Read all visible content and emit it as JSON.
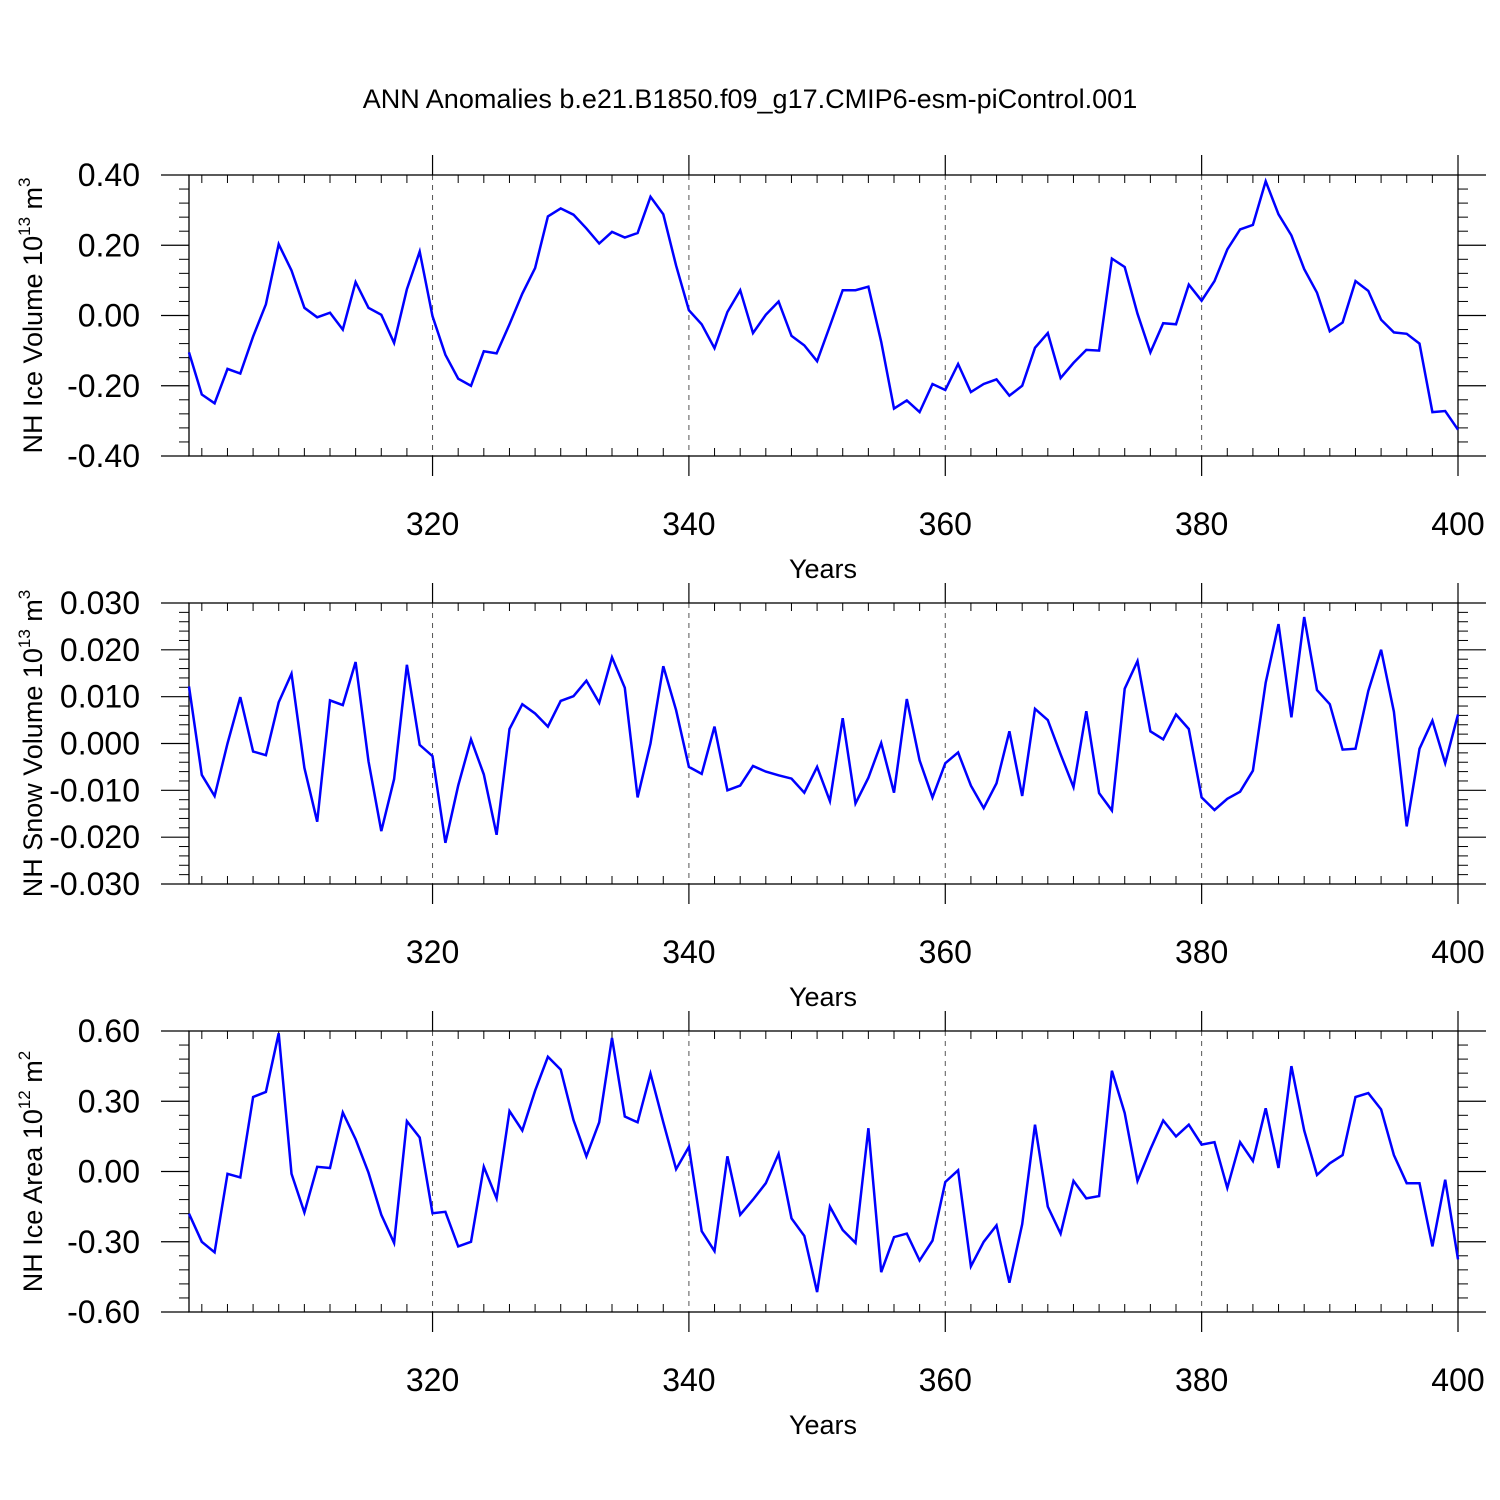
{
  "title": "ANN Anomalies b.e21.B1850.f09_g17.CMIP6-esm-piControl.001",
  "colors": {
    "series": "#0000ff",
    "axis": "#000000"
  },
  "chart_data": [
    {
      "type": "line",
      "ylabel": "NH Ice Volume",
      "yunit_base": "10",
      "yunit_exp": "13",
      "yunit_unit": "m",
      "yunit_unit_exp": "3",
      "xlabel": "Years",
      "xlim": [
        301,
        400
      ],
      "ylim": [
        -0.4,
        0.4
      ],
      "xticks": [
        320,
        340,
        360,
        380,
        400
      ],
      "xtick_labels": [
        "320",
        "340",
        "360",
        "380",
        "400"
      ],
      "yticks": [
        -0.4,
        -0.2,
        0.0,
        0.2,
        0.4
      ],
      "ytick_labels": [
        "-0.40",
        "-0.20",
        "0.00",
        "0.20",
        "0.40"
      ],
      "x_start": 301,
      "values": [
        -0.105,
        -0.225,
        -0.25,
        -0.152,
        -0.165,
        -0.06,
        0.032,
        0.203,
        0.128,
        0.022,
        -0.005,
        0.008,
        -0.04,
        0.095,
        0.022,
        0.002,
        -0.078,
        0.075,
        0.182,
        -0.002,
        -0.112,
        -0.18,
        -0.2,
        -0.102,
        -0.108,
        -0.025,
        0.062,
        0.135,
        0.282,
        0.305,
        0.287,
        0.248,
        0.205,
        0.238,
        0.222,
        0.235,
        0.338,
        0.288,
        0.142,
        0.015,
        -0.025,
        -0.093,
        0.01,
        0.072,
        -0.05,
        0.002,
        0.04,
        -0.058,
        -0.085,
        -0.13,
        -0.03,
        0.072,
        0.072,
        0.082,
        -0.075,
        -0.265,
        -0.242,
        -0.275,
        -0.195,
        -0.212,
        -0.138,
        -0.218,
        -0.195,
        -0.182,
        -0.228,
        -0.2,
        -0.092,
        -0.05,
        -0.178,
        -0.135,
        -0.098,
        -0.1,
        0.162,
        0.138,
        0.005,
        -0.105,
        -0.022,
        -0.025,
        0.088,
        0.042,
        0.098,
        0.188,
        0.245,
        0.258,
        0.382,
        0.288,
        0.228,
        0.132,
        0.065,
        -0.045,
        -0.02,
        0.098,
        0.07,
        -0.012,
        -0.048,
        -0.052,
        -0.08,
        -0.275,
        -0.272,
        -0.325
      ]
    },
    {
      "type": "line",
      "ylabel": "NH Snow Volume",
      "yunit_base": "10",
      "yunit_exp": "13",
      "yunit_unit": "m",
      "yunit_unit_exp": "3",
      "xlabel": "Years",
      "xlim": [
        301,
        400
      ],
      "ylim": [
        -0.03,
        0.03
      ],
      "xticks": [
        320,
        340,
        360,
        380,
        400
      ],
      "xtick_labels": [
        "320",
        "340",
        "360",
        "380",
        "400"
      ],
      "yticks": [
        -0.03,
        -0.02,
        -0.01,
        0.0,
        0.01,
        0.02,
        0.03
      ],
      "ytick_labels": [
        "-0.030",
        "-0.020",
        "-0.010",
        "0.000",
        "0.010",
        "0.020",
        "0.030"
      ],
      "x_start": 301,
      "values": [
        0.0122,
        -0.0067,
        -0.0112,
        0.0,
        0.0099,
        -0.0017,
        -0.0025,
        0.0088,
        0.0149,
        -0.0052,
        -0.0167,
        0.0092,
        0.0082,
        0.0174,
        -0.0038,
        -0.0187,
        -0.0076,
        0.0168,
        -0.0003,
        -0.0027,
        -0.0212,
        -0.009,
        0.0009,
        -0.0066,
        -0.0195,
        0.0031,
        0.0084,
        0.0064,
        0.0036,
        0.0091,
        0.0101,
        0.0134,
        0.0087,
        0.0184,
        0.0119,
        -0.0115,
        0.0,
        0.0165,
        0.0071,
        -0.005,
        -0.0065,
        0.0036,
        -0.01,
        -0.009,
        -0.0048,
        -0.006,
        -0.0068,
        -0.0075,
        -0.0105,
        -0.005,
        -0.0123,
        0.0054,
        -0.0128,
        -0.0073,
        0.0001,
        -0.0105,
        0.0095,
        -0.0036,
        -0.0115,
        -0.0042,
        -0.0019,
        -0.009,
        -0.0138,
        -0.0085,
        0.0026,
        -0.0112,
        0.0074,
        0.005,
        -0.0023,
        -0.0093,
        0.0069,
        -0.0106,
        -0.0143,
        0.0117,
        0.0176,
        0.0026,
        0.0009,
        0.0062,
        0.0031,
        -0.0115,
        -0.0142,
        -0.0118,
        -0.0103,
        -0.0058,
        0.013,
        0.0255,
        0.0056,
        0.027,
        0.0114,
        0.0084,
        -0.0013,
        -0.0011,
        0.0112,
        0.02,
        0.0068,
        -0.0177,
        -0.0011,
        0.0049,
        -0.0042,
        0.0062
      ]
    },
    {
      "type": "line",
      "ylabel": "NH Ice Area",
      "yunit_base": "10",
      "yunit_exp": "12",
      "yunit_unit": "m",
      "yunit_unit_exp": "2",
      "xlabel": "Years",
      "xlim": [
        301,
        400
      ],
      "ylim": [
        -0.6,
        0.6
      ],
      "xticks": [
        320,
        340,
        360,
        380,
        400
      ],
      "xtick_labels": [
        "320",
        "340",
        "360",
        "380",
        "400"
      ],
      "yticks": [
        -0.6,
        -0.3,
        0.0,
        0.3,
        0.6
      ],
      "ytick_labels": [
        "-0.60",
        "-0.30",
        "0.00",
        "0.30",
        "0.60"
      ],
      "x_start": 301,
      "values": [
        -0.18,
        -0.3,
        -0.345,
        -0.01,
        -0.025,
        0.318,
        0.34,
        0.59,
        -0.01,
        -0.175,
        0.02,
        0.015,
        0.252,
        0.138,
        -0.005,
        -0.185,
        -0.305,
        0.215,
        0.145,
        -0.178,
        -0.172,
        -0.32,
        -0.3,
        0.02,
        -0.115,
        0.258,
        0.175,
        0.345,
        0.49,
        0.435,
        0.22,
        0.065,
        0.21,
        0.57,
        0.235,
        0.21,
        0.418,
        0.21,
        0.01,
        0.105,
        -0.255,
        -0.34,
        0.065,
        -0.185,
        -0.12,
        -0.05,
        0.075,
        -0.2,
        -0.275,
        -0.515,
        -0.15,
        -0.25,
        -0.305,
        0.185,
        -0.43,
        -0.28,
        -0.265,
        -0.38,
        -0.295,
        -0.045,
        0.005,
        -0.405,
        -0.3,
        -0.23,
        -0.475,
        -0.225,
        0.2,
        -0.15,
        -0.265,
        -0.04,
        -0.115,
        -0.105,
        0.43,
        0.25,
        -0.04,
        0.095,
        0.218,
        0.15,
        0.2,
        0.115,
        0.125,
        -0.07,
        0.125,
        0.045,
        0.27,
        0.015,
        0.45,
        0.175,
        -0.015,
        0.035,
        0.07,
        0.318,
        0.335,
        0.265,
        0.07,
        -0.05,
        -0.05,
        -0.32,
        -0.035,
        -0.375
      ]
    }
  ]
}
